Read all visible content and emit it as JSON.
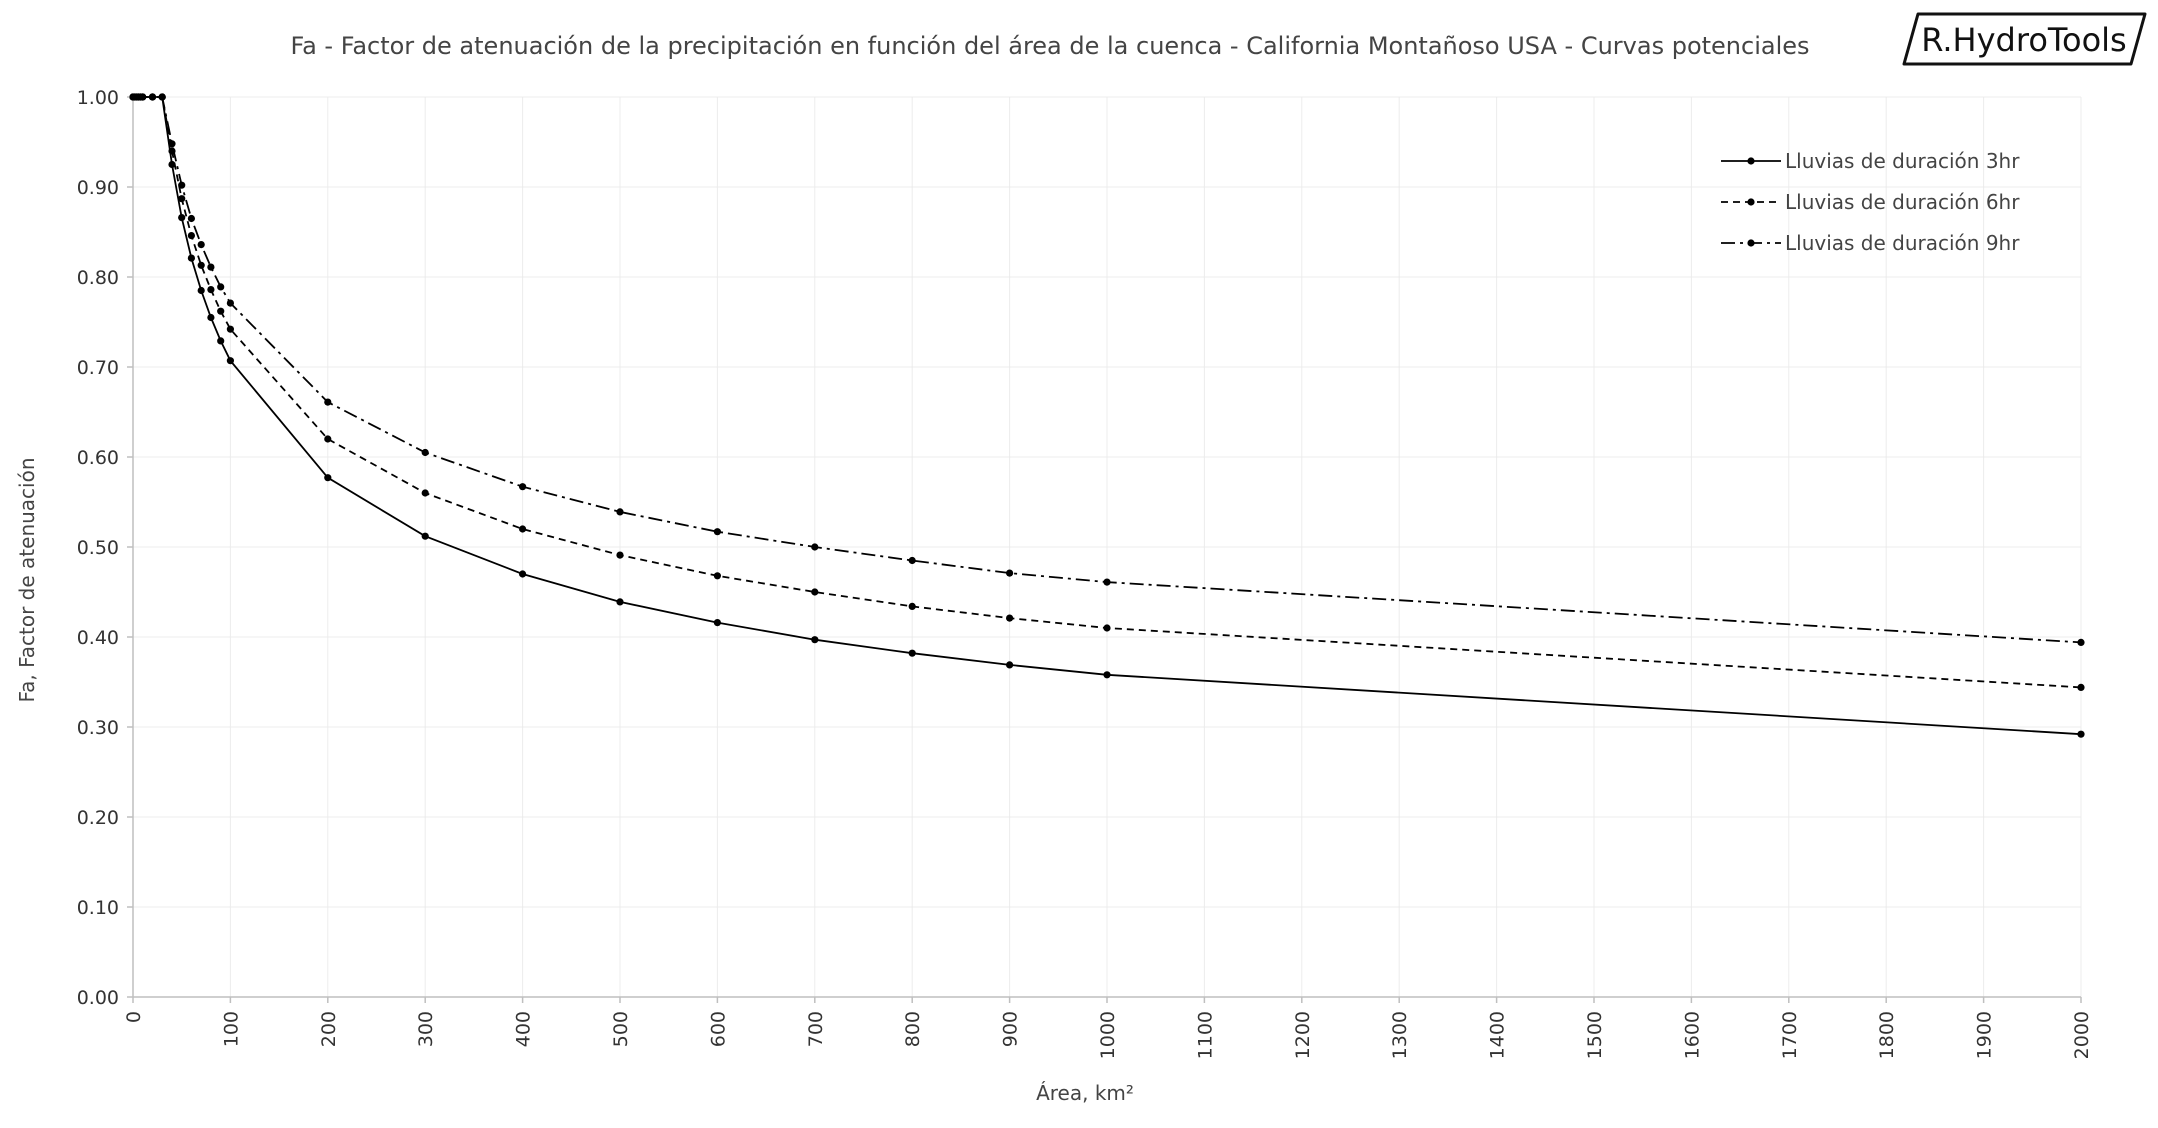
{
  "brand": "R.HydroTools",
  "chart_data": {
    "type": "line",
    "title": "Fa - Factor de atenuación de la precipitación en función del área de la cuenca - California Montañoso USA - Curvas potenciales",
    "xlabel": "Área, km²",
    "ylabel": "Fa, Factor de atenuación",
    "xlim": [
      0,
      2000
    ],
    "ylim": [
      0,
      1
    ],
    "xticks": [
      "0",
      "100",
      "200",
      "300",
      "400",
      "500",
      "600",
      "700",
      "800",
      "900",
      "1000",
      "1100",
      "1200",
      "1300",
      "1400",
      "1500",
      "1600",
      "1700",
      "1800",
      "1900",
      "2000"
    ],
    "yticks": [
      "0.00",
      "0.10",
      "0.20",
      "0.30",
      "0.40",
      "0.50",
      "0.60",
      "0.70",
      "0.80",
      "0.90",
      "1.00"
    ],
    "grid": true,
    "legend_position": "top-right",
    "series": [
      {
        "name": "Lluvias de duración 3hr",
        "style": "solid",
        "x": [
          0,
          2,
          4,
          6,
          8,
          10,
          20,
          30,
          40,
          50,
          60,
          70,
          80,
          90,
          100,
          200,
          300,
          400,
          500,
          600,
          700,
          800,
          900,
          1000,
          2000
        ],
        "y": [
          1.0,
          1.0,
          1.0,
          1.0,
          1.0,
          1.0,
          1.0,
          1.0,
          0.925,
          0.866,
          0.821,
          0.785,
          0.755,
          0.729,
          0.707,
          0.577,
          0.512,
          0.47,
          0.439,
          0.416,
          0.397,
          0.382,
          0.369,
          0.358,
          0.292
        ]
      },
      {
        "name": "Lluvias de duración 6hr",
        "style": "dashed",
        "x": [
          0,
          2,
          4,
          6,
          8,
          10,
          20,
          30,
          40,
          50,
          60,
          70,
          80,
          90,
          100,
          200,
          300,
          400,
          500,
          600,
          700,
          800,
          900,
          1000,
          2000
        ],
        "y": [
          1.0,
          1.0,
          1.0,
          1.0,
          1.0,
          1.0,
          1.0,
          1.0,
          0.94,
          0.887,
          0.846,
          0.813,
          0.786,
          0.762,
          0.742,
          0.62,
          0.56,
          0.52,
          0.491,
          0.468,
          0.45,
          0.434,
          0.421,
          0.41,
          0.344
        ]
      },
      {
        "name": "Lluvias de duración 9hr",
        "style": "dashdot",
        "x": [
          0,
          2,
          4,
          6,
          8,
          10,
          20,
          30,
          40,
          50,
          60,
          70,
          80,
          90,
          100,
          200,
          300,
          400,
          500,
          600,
          700,
          800,
          900,
          1000,
          2000
        ],
        "y": [
          1.0,
          1.0,
          1.0,
          1.0,
          1.0,
          1.0,
          1.0,
          1.0,
          0.948,
          0.902,
          0.865,
          0.836,
          0.811,
          0.789,
          0.771,
          0.661,
          0.605,
          0.567,
          0.539,
          0.517,
          0.5,
          0.485,
          0.471,
          0.461,
          0.394
        ]
      }
    ]
  }
}
